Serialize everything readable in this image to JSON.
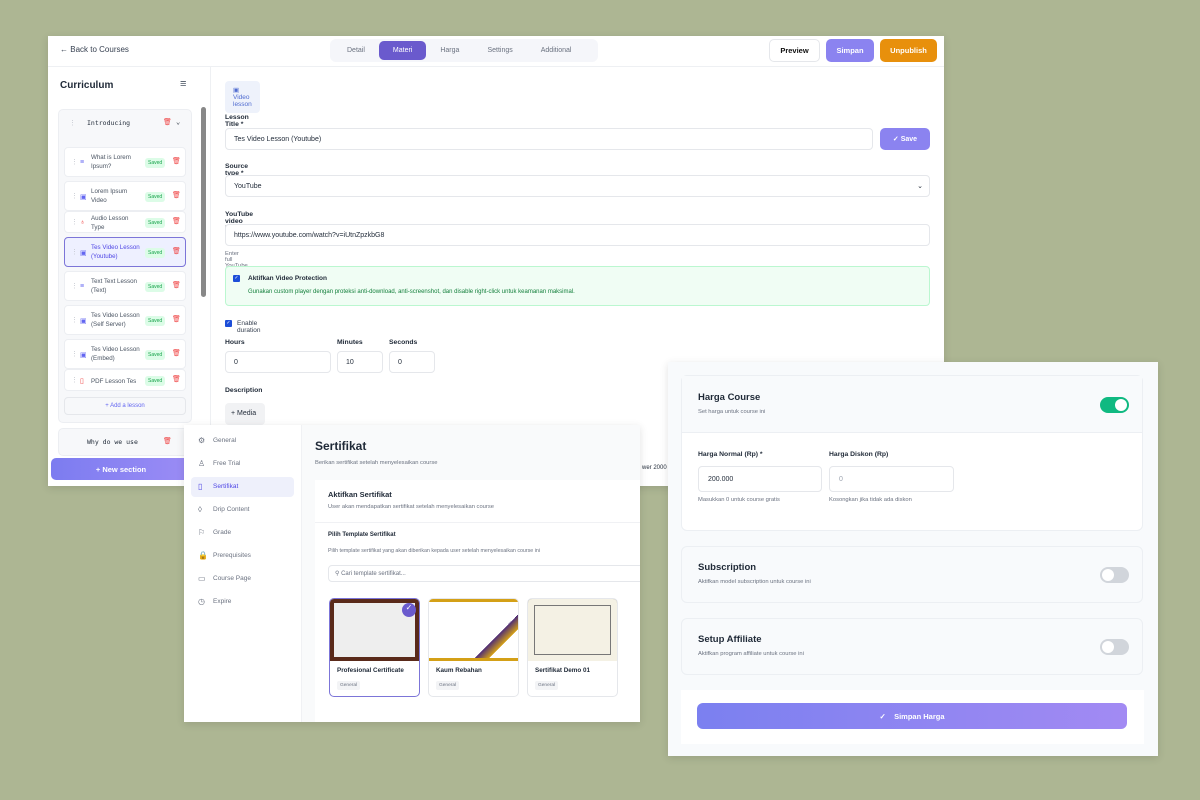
{
  "editor": {
    "back": "Back to Courses",
    "tabs": [
      "Detail",
      "Materi",
      "Harga",
      "Settings",
      "Additional"
    ],
    "active_tab": "Materi",
    "actions": {
      "preview": "Preview",
      "simpan": "Simpan",
      "unpublish": "Unpublish"
    },
    "curriculum": {
      "title": "Curriculum",
      "sections": [
        {
          "title": "Introducing",
          "lessons": [
            {
              "title": "What is Lorem Ipsum?",
              "icon": "text-icon",
              "status": "Saved"
            },
            {
              "title": "Lorem Ipsum Video",
              "icon": "video-icon",
              "status": "Saved"
            },
            {
              "title": "Audio Lesson Type",
              "icon": "audio-icon",
              "status": "Saved"
            },
            {
              "title": "Tes Video Lesson (Youtube)",
              "icon": "video-icon",
              "status": "Saved",
              "selected": true
            },
            {
              "title": "Text Text Lesson (Text)",
              "icon": "text-icon",
              "status": "Saved"
            },
            {
              "title": "Tes Video Lesson (Self Server)",
              "icon": "video-icon",
              "status": "Saved"
            },
            {
              "title": "Tes Video Lesson (Embed)",
              "icon": "video-icon",
              "status": "Saved"
            },
            {
              "title": "PDF Lesson Tes",
              "icon": "pdf-icon",
              "status": "Saved"
            }
          ],
          "add": "+ Add a lesson"
        },
        {
          "title": "Why do we use"
        }
      ],
      "new_section": "+ New section"
    },
    "form": {
      "type_chip": "Video lesson",
      "lesson_title_label": "Lesson Title *",
      "lesson_title": "Tes Video Lesson (Youtube)",
      "save": "✓ Save",
      "source_label": "Source type *",
      "source": "YouTube",
      "url_label": "YouTube video URL",
      "url": "https://www.youtube.com/watch?v=iUtnZpzkbG8",
      "url_help": "Enter full YouTube video URL",
      "protection_title": "Aktifkan Video Protection",
      "protection_checked": true,
      "protection_desc": "Gunakan custom player dengan proteksi anti-download, anti-screenshot, dan disable right-click untuk keamanan maksimal.",
      "duration_label": "Enable duration",
      "duration_checked": true,
      "hours_label": "Hours",
      "hours": "0",
      "minutes_label": "Minutes",
      "minutes": "10",
      "seconds_label": "Seconds",
      "seconds": "0",
      "description_label": "Description",
      "media": "+ Media",
      "partial": "wer 2000"
    }
  },
  "settings": {
    "nav": [
      "General",
      "Free Trial",
      "Sertifikat",
      "Drip Content",
      "Grade",
      "Prerequisites",
      "Course Page",
      "Expire"
    ],
    "active": "Sertifikat",
    "title": "Sertifikat",
    "subtitle": "Berikan sertifikat setelah menyelesaikan course",
    "activate_title": "Aktifkan Sertifikat",
    "activate_desc": "User akan mendapatkan sertifikat setelah menyelesaikan course",
    "template_title": "Pilih Template Sertifikat",
    "template_desc": "Pilih template sertifikat yang akan diberikan kepada user setelah menyelesaikan course ini",
    "search_placeholder": "Cari template sertifikat...",
    "templates": [
      {
        "name": "Profesional Certificate",
        "tag": "General",
        "selected": true
      },
      {
        "name": "Kaum Rebahan",
        "tag": "General"
      },
      {
        "name": "Sertifikat Demo 01",
        "tag": "General"
      }
    ]
  },
  "pricing": {
    "harga": {
      "title": "Harga Course",
      "desc": "Set harga untuk course ini",
      "enabled": true
    },
    "normal_label": "Harga Normal (Rp) *",
    "normal": "200.000",
    "normal_help": "Masukkan 0 untuk course gratis",
    "diskon_label": "Harga Diskon (Rp)",
    "diskon_placeholder": "0",
    "diskon_help": "Kosongkan jika tidak ada diskon",
    "subscription": {
      "title": "Subscription",
      "desc": "Aktifkan model subscription untuk course ini",
      "enabled": false
    },
    "affiliate": {
      "title": "Setup Affiliate",
      "desc": "Aktifkan program affiliate untuk course ini",
      "enabled": false
    },
    "save": "Simpan Harga"
  },
  "colors": {
    "accent": "#6a5acd",
    "unpublish": "#e8900c",
    "toggle_on": "#10b981",
    "background": "#adb693"
  }
}
